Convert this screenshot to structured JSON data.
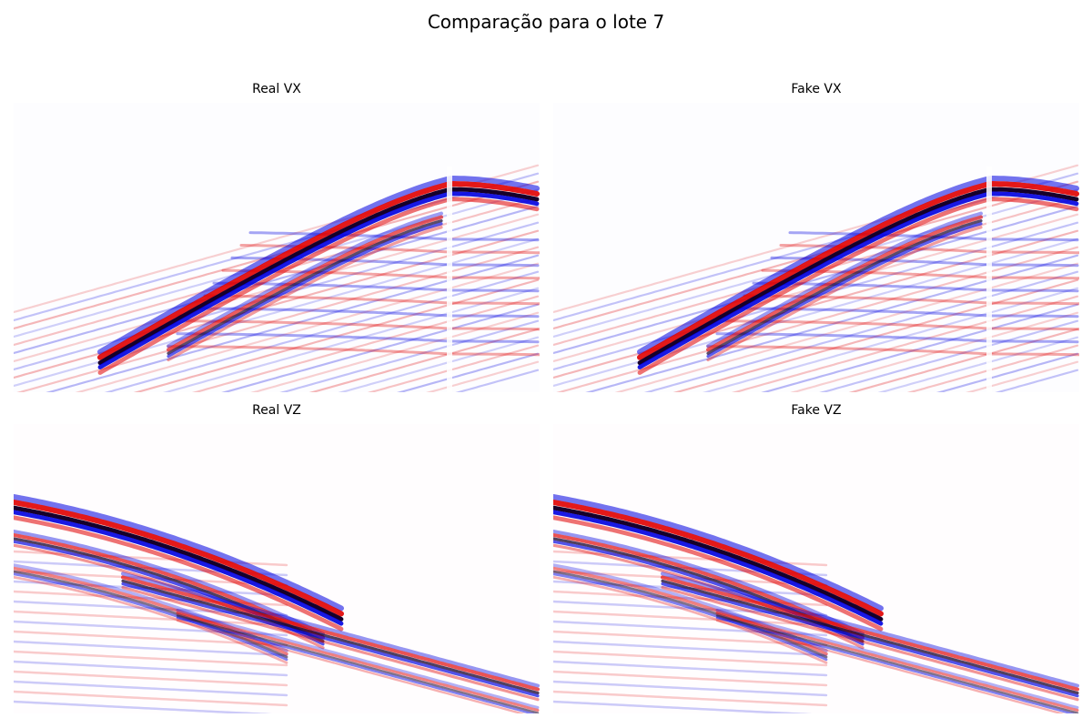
{
  "figure": {
    "title": "Comparação para o lote 7",
    "colormap": "seismic",
    "colors": {
      "red": "#e00000",
      "blue": "#0000e0",
      "dark": "#15002a",
      "background": "#ffffff"
    }
  },
  "panels": [
    {
      "id": "real-vx",
      "title": "Real VX",
      "kind": "vx"
    },
    {
      "id": "fake-vx",
      "title": "Fake VX",
      "kind": "vx"
    },
    {
      "id": "real-vz",
      "title": "Real VZ",
      "kind": "vz"
    },
    {
      "id": "fake-vz",
      "title": "Fake VZ",
      "kind": "vz"
    }
  ]
}
